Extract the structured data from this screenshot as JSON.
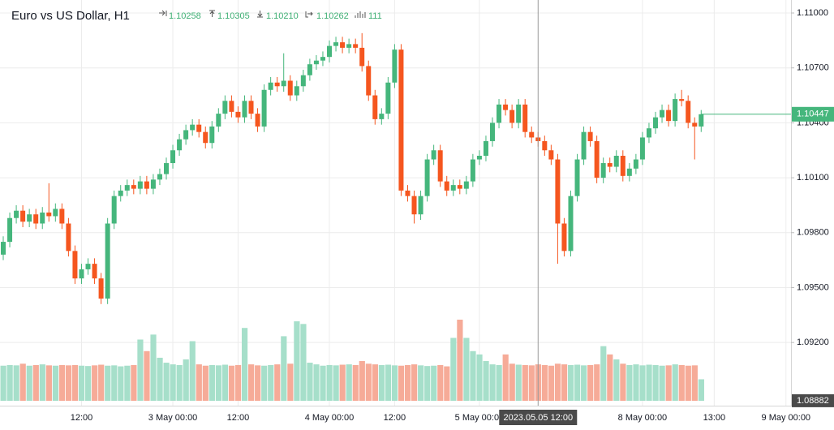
{
  "chart_data": {
    "type": "candlestick",
    "title": "Euro vs US Dollar, H1",
    "header_values": [
      "1.10258",
      "1.10305",
      "1.10210",
      "1.10262",
      "111"
    ],
    "up_color": "#45b67c",
    "down_color": "#f5561f",
    "volume_up_color": "#a6dfca",
    "volume_down_color": "#f6ab98",
    "grid": true,
    "ylim": [
      1.08855,
      1.11071
    ],
    "yticks": [
      {
        "value": 1.11,
        "label": "1.11000"
      },
      {
        "value": 1.107,
        "label": "1.10700"
      },
      {
        "value": 1.104,
        "label": "1.10400"
      },
      {
        "value": 1.101,
        "label": "1.10100"
      },
      {
        "value": 1.098,
        "label": "1.09800"
      },
      {
        "value": 1.095,
        "label": "1.09500"
      },
      {
        "value": 1.092,
        "label": "1.09200"
      }
    ],
    "xticks": [
      {
        "candle": 12,
        "label": "12:00"
      },
      {
        "candle": 26,
        "label": "3 May 00:00"
      },
      {
        "candle": 36,
        "label": "12:00"
      },
      {
        "candle": 50,
        "label": "4 May 00:00"
      },
      {
        "candle": 60,
        "label": "12:00"
      },
      {
        "candle": 73,
        "label": "5 May 00:00"
      },
      {
        "candle": 98,
        "label": "8 May 00:00"
      },
      {
        "candle": 109,
        "label": "13:00"
      },
      {
        "candle": 120,
        "label": "9 May 00:00"
      }
    ],
    "crosshair": {
      "candle": 82,
      "label": "2023.05.05 12:00"
    },
    "last_price": {
      "value": 1.10447,
      "label": "1.10447"
    },
    "bottom_price": {
      "value": 1.08882,
      "label": "1.08882"
    },
    "candles": [
      [
        1.0968,
        1.0978,
        1.0965,
        1.0975
      ],
      [
        1.0975,
        1.0991,
        1.0972,
        1.0988
      ],
      [
        1.0988,
        1.0995,
        1.0985,
        1.0992
      ],
      [
        1.0992,
        1.0995,
        1.0983,
        1.0986
      ],
      [
        1.0986,
        1.0993,
        1.0983,
        1.099
      ],
      [
        1.099,
        1.0993,
        1.0982,
        1.0985
      ],
      [
        1.0985,
        1.0994,
        1.0982,
        1.0991
      ],
      [
        1.0991,
        1.1007,
        1.0986,
        1.0989
      ],
      [
        1.0989,
        1.0996,
        1.0986,
        1.0993
      ],
      [
        1.0993,
        1.0996,
        1.0982,
        1.0985
      ],
      [
        1.0985,
        1.0988,
        1.0967,
        1.097
      ],
      [
        1.097,
        1.0973,
        1.0952,
        1.0955
      ],
      [
        1.0955,
        1.0963,
        1.0952,
        1.096
      ],
      [
        1.096,
        1.0966,
        1.0957,
        1.0963
      ],
      [
        1.0963,
        1.0966,
        1.0952,
        1.0955
      ],
      [
        1.0955,
        1.0958,
        1.0941,
        1.0944
      ],
      [
        1.0944,
        1.0988,
        1.0941,
        1.0985
      ],
      [
        1.0985,
        1.1003,
        1.0982,
        1.1
      ],
      [
        1.1,
        1.1006,
        1.0997,
        1.1003
      ],
      [
        1.1003,
        1.1009,
        1.1,
        1.1006
      ],
      [
        1.1006,
        1.1009,
        1.1001,
        1.1004
      ],
      [
        1.1004,
        1.1011,
        1.1001,
        1.1008
      ],
      [
        1.1008,
        1.1011,
        1.1001,
        1.1004
      ],
      [
        1.1004,
        1.1012,
        1.1001,
        1.1009
      ],
      [
        1.1009,
        1.1015,
        1.1006,
        1.1012
      ],
      [
        1.1012,
        1.1021,
        1.1009,
        1.1018
      ],
      [
        1.1018,
        1.1028,
        1.1015,
        1.1025
      ],
      [
        1.1025,
        1.1034,
        1.1022,
        1.1031
      ],
      [
        1.1031,
        1.1039,
        1.1028,
        1.1036
      ],
      [
        1.1036,
        1.1042,
        1.1033,
        1.1039
      ],
      [
        1.1039,
        1.1042,
        1.1032,
        1.1035
      ],
      [
        1.1035,
        1.1038,
        1.1026,
        1.1029
      ],
      [
        1.1029,
        1.1041,
        1.1026,
        1.1038
      ],
      [
        1.1038,
        1.1048,
        1.1035,
        1.1045
      ],
      [
        1.1045,
        1.1055,
        1.1042,
        1.1052
      ],
      [
        1.1052,
        1.1055,
        1.1043,
        1.1046
      ],
      [
        1.1046,
        1.1049,
        1.104,
        1.1043
      ],
      [
        1.1043,
        1.1055,
        1.104,
        1.1052
      ],
      [
        1.1052,
        1.1055,
        1.1042,
        1.1045
      ],
      [
        1.1045,
        1.1048,
        1.1035,
        1.1038
      ],
      [
        1.1038,
        1.1061,
        1.1035,
        1.1058
      ],
      [
        1.1058,
        1.1065,
        1.1055,
        1.1062
      ],
      [
        1.1062,
        1.1065,
        1.1057,
        1.106
      ],
      [
        1.106,
        1.1078,
        1.1057,
        1.1063
      ],
      [
        1.1063,
        1.1066,
        1.1052,
        1.1055
      ],
      [
        1.1055,
        1.1063,
        1.1052,
        1.106
      ],
      [
        1.106,
        1.1069,
        1.1057,
        1.1066
      ],
      [
        1.1066,
        1.1075,
        1.1063,
        1.1072
      ],
      [
        1.1072,
        1.1077,
        1.1069,
        1.1074
      ],
      [
        1.1074,
        1.1079,
        1.1071,
        1.1076
      ],
      [
        1.1076,
        1.1085,
        1.1073,
        1.1082
      ],
      [
        1.1082,
        1.1087,
        1.1079,
        1.1084
      ],
      [
        1.1084,
        1.1087,
        1.1078,
        1.1081
      ],
      [
        1.1081,
        1.1086,
        1.1078,
        1.1083
      ],
      [
        1.1083,
        1.1086,
        1.1078,
        1.1081
      ],
      [
        1.1081,
        1.1089,
        1.1068,
        1.1071
      ],
      [
        1.1071,
        1.1074,
        1.1052,
        1.1055
      ],
      [
        1.1055,
        1.1058,
        1.1039,
        1.1042
      ],
      [
        1.1042,
        1.1048,
        1.1039,
        1.1045
      ],
      [
        1.1045,
        1.1065,
        1.1042,
        1.1062
      ],
      [
        1.1062,
        1.1083,
        1.1059,
        1.108
      ],
      [
        1.108,
        1.1083,
        1.1,
        1.1003
      ],
      [
        1.1003,
        1.1006,
        1.0997,
        1.1
      ],
      [
        1.1,
        1.1003,
        1.0985,
        1.099
      ],
      [
        1.099,
        1.1003,
        1.0987,
        1.1
      ],
      [
        1.1,
        1.1023,
        1.0997,
        1.102
      ],
      [
        1.102,
        1.1028,
        1.1017,
        1.1025
      ],
      [
        1.1025,
        1.1028,
        1.1005,
        1.1008
      ],
      [
        1.1008,
        1.1011,
        1.1,
        1.1003
      ],
      [
        1.1003,
        1.1009,
        1.1,
        1.1006
      ],
      [
        1.1006,
        1.1009,
        1.1001,
        1.1004
      ],
      [
        1.1004,
        1.1011,
        1.1001,
        1.1008
      ],
      [
        1.1008,
        1.1023,
        1.1005,
        1.102
      ],
      [
        1.102,
        1.1025,
        1.1017,
        1.1022
      ],
      [
        1.1022,
        1.1033,
        1.1019,
        1.103
      ],
      [
        1.103,
        1.1043,
        1.1027,
        1.104
      ],
      [
        1.104,
        1.1053,
        1.1037,
        1.105
      ],
      [
        1.105,
        1.1053,
        1.1044,
        1.1047
      ],
      [
        1.1047,
        1.105,
        1.1037,
        1.104
      ],
      [
        1.104,
        1.1053,
        1.1037,
        1.105
      ],
      [
        1.105,
        1.1053,
        1.1032,
        1.1035
      ],
      [
        1.1035,
        1.1038,
        1.1029,
        1.1032
      ],
      [
        1.1032,
        1.1035,
        1.1027,
        1.103
      ],
      [
        1.103,
        1.1033,
        1.1022,
        1.1025
      ],
      [
        1.1025,
        1.1028,
        1.1017,
        1.102
      ],
      [
        1.102,
        1.1023,
        1.0963,
        1.0985
      ],
      [
        1.0985,
        1.0988,
        1.0967,
        1.097
      ],
      [
        1.097,
        1.1003,
        1.0967,
        1.1
      ],
      [
        1.1,
        1.1023,
        1.0997,
        1.102
      ],
      [
        1.102,
        1.1038,
        1.1017,
        1.1035
      ],
      [
        1.1035,
        1.1038,
        1.1027,
        1.103
      ],
      [
        1.103,
        1.1033,
        1.1007,
        1.101
      ],
      [
        1.101,
        1.1021,
        1.1007,
        1.1018
      ],
      [
        1.1018,
        1.1021,
        1.1013,
        1.1016
      ],
      [
        1.1016,
        1.1025,
        1.1013,
        1.1022
      ],
      [
        1.1022,
        1.1025,
        1.1008,
        1.1011
      ],
      [
        1.1011,
        1.1018,
        1.1008,
        1.1015
      ],
      [
        1.1015,
        1.1023,
        1.1012,
        1.102
      ],
      [
        1.102,
        1.1035,
        1.1017,
        1.1032
      ],
      [
        1.1032,
        1.104,
        1.1029,
        1.1037
      ],
      [
        1.1037,
        1.1046,
        1.1034,
        1.1043
      ],
      [
        1.1043,
        1.105,
        1.104,
        1.1047
      ],
      [
        1.1047,
        1.105,
        1.1038,
        1.1041
      ],
      [
        1.1041,
        1.1056,
        1.1038,
        1.1053
      ],
      [
        1.1053,
        1.1058,
        1.1049,
        1.1052
      ],
      [
        1.1052,
        1.1055,
        1.1037,
        1.104
      ],
      [
        1.104,
        1.1043,
        1.102,
        1.1038
      ],
      [
        1.1038,
        1.1047,
        1.1035,
        1.10447
      ]
    ],
    "volumes": [
      106,
      108,
      107,
      112,
      106,
      108,
      110,
      107,
      106,
      108,
      107,
      108,
      106,
      105,
      107,
      109,
      106,
      107,
      104,
      106,
      108,
      185,
      150,
      200,
      130,
      115,
      110,
      108,
      125,
      180,
      110,
      106,
      108,
      107,
      109,
      106,
      108,
      220,
      110,
      107,
      106,
      108,
      110,
      195,
      112,
      240,
      232,
      115,
      110,
      106,
      108,
      107,
      109,
      110,
      108,
      120,
      112,
      110,
      108,
      109,
      107,
      106,
      108,
      110,
      107,
      105,
      106,
      108,
      104,
      190,
      245,
      190,
      150,
      140,
      120,
      110,
      108,
      140,
      112,
      109,
      108,
      107,
      110,
      108,
      106,
      112,
      110,
      108,
      109,
      107,
      108,
      110,
      165,
      140,
      125,
      112,
      108,
      110,
      107,
      109,
      108,
      106,
      107,
      110,
      108,
      106,
      107,
      65
    ]
  }
}
